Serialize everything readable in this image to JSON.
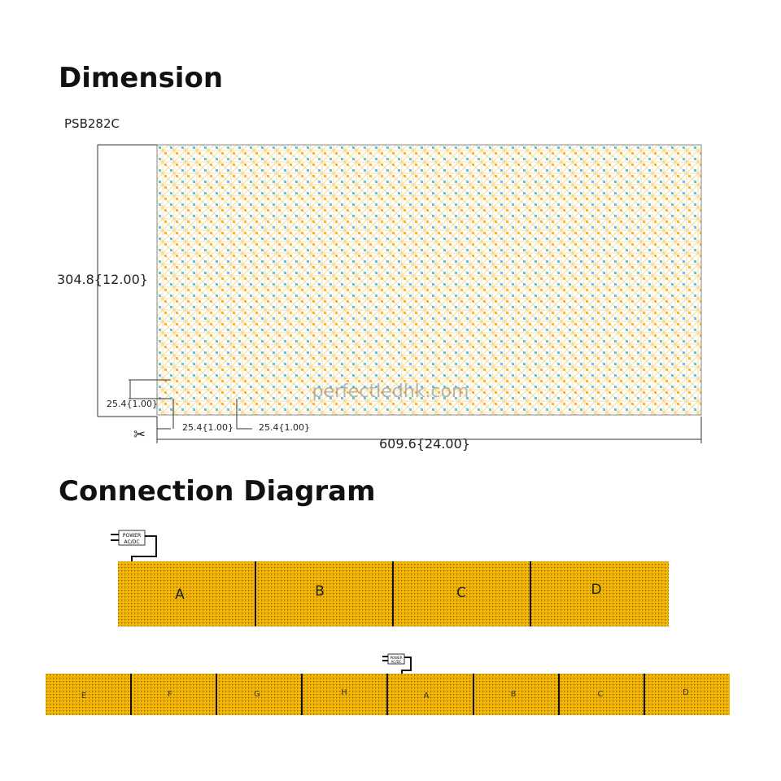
{
  "dimension": {
    "title": "Dimension",
    "model": "PSB282C",
    "height_label": "304.8{12.00}",
    "width_label": "609.6{24.00}",
    "pitch_v_label": "25.4{1.00}",
    "pitch_h1_label": "25.4{1.00}",
    "pitch_h2_label": "25.4{1.00}",
    "watermark": "perfectledhk.com"
  },
  "connection": {
    "title": "Connection Diagram",
    "power_label_1": "POWER",
    "power_label_2": "AC/DC",
    "top_segments": [
      "A",
      "B",
      "C",
      "D"
    ],
    "bottom_segments": [
      "E",
      "F",
      "G",
      "H",
      "A",
      "B",
      "C",
      "D"
    ]
  },
  "colors": {
    "led_yellow": "#f5b82a",
    "led_cyan": "#5bc7d6",
    "strip": "#f4b400",
    "trace": "#f7d58a"
  }
}
